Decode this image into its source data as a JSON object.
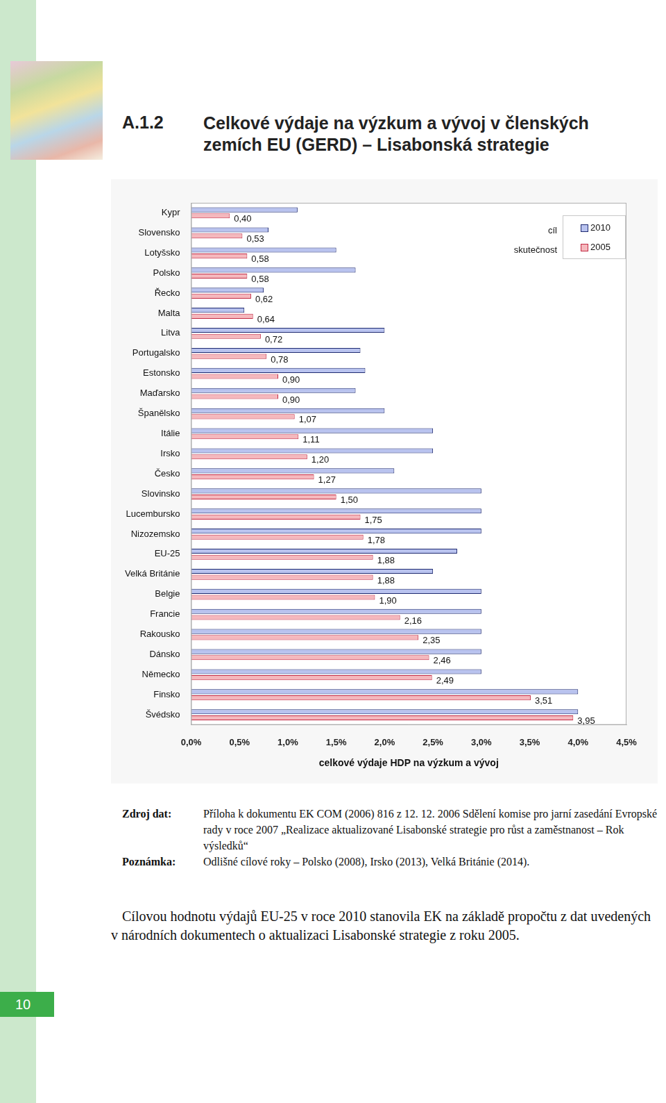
{
  "page": {
    "heading_number": "A.1.2",
    "heading_title": "Celkové výdaje na výzkum a vývoj v členských zemích EU (GERD) – Lisabonská strategie",
    "source_label": "Zdroj dat:",
    "source_text": "Příloha k dokumentu EK COM (2006) 816 z 12. 12. 2006 Sdělení komise pro jarní zasedání Evropské rady v roce 2007 „Realizace aktualizované Lisabonské strategie pro růst a zaměstnanost – Rok výsledků“",
    "note_label": "Poznámka:",
    "note_text": "Odlišné cílové roky – Polsko (2008), Irsko (2013), Velká Británie (2014).",
    "paragraph": "Cílovou hodnotu výdajů EU-25 v roce 2010 stanovila EK na základě propočtu z dat uvedených v národních dokumentech o aktualizaci Lisabonské strategie z roku 2005.",
    "page_number": 10
  },
  "chart_data": {
    "type": "bar",
    "orientation": "horizontal",
    "x_label": "celkové výdaje HDP na výzkum a vývoj",
    "categories": [
      "Kypr",
      "Slovensko",
      "Lotyšsko",
      "Polsko",
      "Řecko",
      "Malta",
      "Litva",
      "Portugalsko",
      "Estonsko",
      "Maďarsko",
      "Španělsko",
      "Itálie",
      "Irsko",
      "Česko",
      "Slovinsko",
      "Lucembursko",
      "Nizozemsko",
      "EU-25",
      "Velká Británie",
      "Belgie",
      "Francie",
      "Rakousko",
      "Dánsko",
      "Německo",
      "Finsko",
      "Švédsko"
    ],
    "series": [
      {
        "name": "2010",
        "role": "cíl",
        "color": "#b9c3ef",
        "data_labels": false,
        "values": [
          1.1,
          0.8,
          1.5,
          1.7,
          0.75,
          0.55,
          2.0,
          1.75,
          1.8,
          1.7,
          2.0,
          2.5,
          2.5,
          2.1,
          3.0,
          3.0,
          3.0,
          2.75,
          2.5,
          3.0,
          3.0,
          3.0,
          3.0,
          3.0,
          4.0,
          4.0
        ]
      },
      {
        "name": "2005",
        "role": "skutečnost",
        "color": "#f5b8bd",
        "data_labels": true,
        "values": [
          0.4,
          0.53,
          0.58,
          0.58,
          0.62,
          0.64,
          0.72,
          0.78,
          0.9,
          0.9,
          1.07,
          1.11,
          1.2,
          1.27,
          1.5,
          1.75,
          1.78,
          1.88,
          1.88,
          1.9,
          2.16,
          2.35,
          2.46,
          2.49,
          3.51,
          3.95
        ],
        "value_labels": [
          "0,40",
          "0,53",
          "0,58",
          "0,58",
          "0,62",
          "0,64",
          "0,72",
          "0,78",
          "0,90",
          "0,90",
          "1,07",
          "1,11",
          "1,20",
          "1,27",
          "1,50",
          "1,75",
          "1,78",
          "1,88",
          "1,88",
          "1,90",
          "2,16",
          "2,35",
          "2,46",
          "2,49",
          "3,51",
          "3,95"
        ]
      }
    ],
    "xlim": [
      0,
      4.5
    ],
    "xticks": [
      {
        "value": 0,
        "label": "0,0%"
      },
      {
        "value": 0.5,
        "label": "0,5%"
      },
      {
        "value": 1,
        "label": "1,0%"
      },
      {
        "value": 1.5,
        "label": "1,5%"
      },
      {
        "value": 2,
        "label": "2,0%"
      },
      {
        "value": 2.5,
        "label": "2,5%"
      },
      {
        "value": 3,
        "label": "3,0%"
      },
      {
        "value": 3.5,
        "label": "3,5%"
      },
      {
        "value": 4,
        "label": "4,0%"
      },
      {
        "value": 4.5,
        "label": "4,5%"
      }
    ],
    "grid": false,
    "legend": "top right"
  }
}
